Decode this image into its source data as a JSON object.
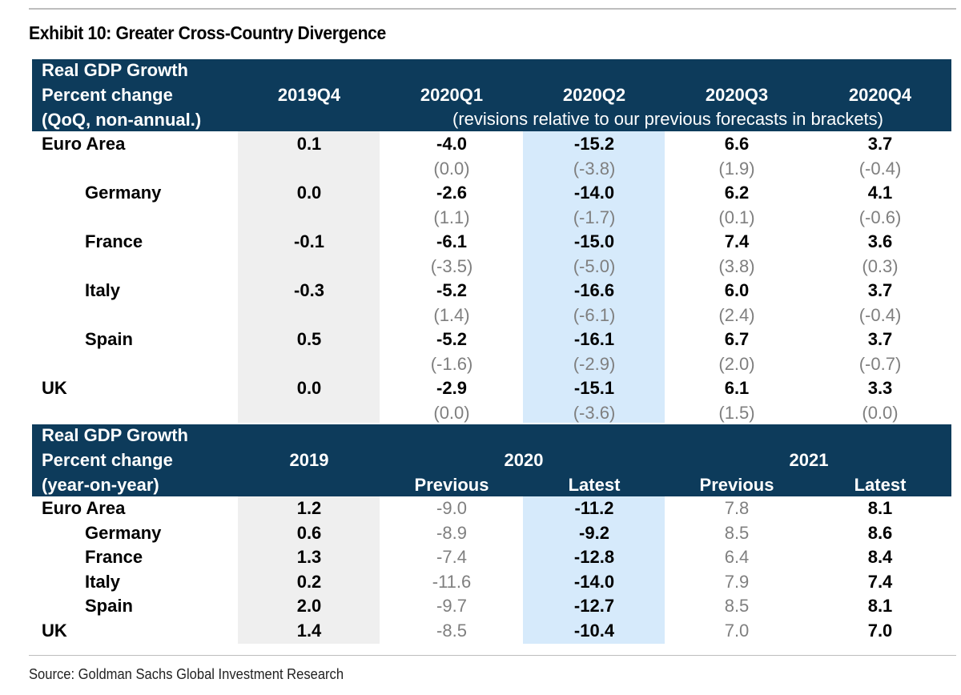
{
  "title": "Exhibit 10: Greater Cross-Country Divergence",
  "source": "Source: Goldman Sachs Global Investment Research",
  "colors": {
    "header_bg": "#0d3b5b",
    "highlight_blue": "#d6eafb",
    "highlight_grey": "#efefef",
    "muted": "#7f7f7f"
  },
  "quarterly": {
    "header": {
      "label_lines": [
        "Real GDP Growth",
        "Percent change",
        "(QoQ, non-annual.)"
      ],
      "columns": [
        "2019Q4",
        "2020Q1",
        "2020Q2",
        "2020Q3",
        "2020Q4"
      ],
      "note": "(revisions relative to our previous forecasts in brackets)"
    },
    "rows": [
      {
        "name": "Euro Area",
        "values": [
          "0.1",
          "-4.0",
          "-15.2",
          "6.6",
          "3.7"
        ],
        "revisions": [
          "(0.0)",
          "(-3.8)",
          "(1.9)",
          "(-0.4)"
        ]
      },
      {
        "name": "Germany",
        "values": [
          "0.0",
          "-2.6",
          "-14.0",
          "6.2",
          "4.1"
        ],
        "revisions": [
          "(1.1)",
          "(-1.7)",
          "(0.1)",
          "(-0.6)"
        ]
      },
      {
        "name": "France",
        "values": [
          "-0.1",
          "-6.1",
          "-15.0",
          "7.4",
          "3.6"
        ],
        "revisions": [
          "(-3.5)",
          "(-5.0)",
          "(3.8)",
          "(0.3)"
        ]
      },
      {
        "name": "Italy",
        "values": [
          "-0.3",
          "-5.2",
          "-16.6",
          "6.0",
          "3.7"
        ],
        "revisions": [
          "(1.4)",
          "(-6.1)",
          "(2.4)",
          "(-0.4)"
        ]
      },
      {
        "name": "Spain",
        "values": [
          "0.5",
          "-5.2",
          "-16.1",
          "6.7",
          "3.7"
        ],
        "revisions": [
          "(-1.6)",
          "(-2.9)",
          "(2.0)",
          "(-0.7)"
        ]
      },
      {
        "name": "UK",
        "values": [
          "0.0",
          "-2.9",
          "-15.1",
          "6.1",
          "3.3"
        ],
        "revisions": [
          "(0.0)",
          "(-3.6)",
          "(1.5)",
          "(0.0)"
        ]
      }
    ]
  },
  "annual": {
    "header": {
      "label_lines": [
        "Real GDP Growth",
        "Percent change",
        "(year-on-year)"
      ],
      "year_2019": "2019",
      "year_2020": "2020",
      "year_2021": "2021",
      "sub_2020": [
        "Previous",
        "Latest"
      ],
      "sub_2021": [
        "Previous",
        "Latest"
      ]
    },
    "rows": [
      {
        "name": "Euro Area",
        "values": [
          "1.2",
          "-9.0",
          "-11.2",
          "7.8",
          "8.1"
        ]
      },
      {
        "name": "Germany",
        "values": [
          "0.6",
          "-8.9",
          "-9.2",
          "8.5",
          "8.6"
        ]
      },
      {
        "name": "France",
        "values": [
          "1.3",
          "-7.4",
          "-12.8",
          "6.4",
          "8.4"
        ]
      },
      {
        "name": "Italy",
        "values": [
          "0.2",
          "-11.6",
          "-14.0",
          "7.9",
          "7.4"
        ]
      },
      {
        "name": "Spain",
        "values": [
          "2.0",
          "-9.7",
          "-12.7",
          "8.5",
          "8.1"
        ]
      },
      {
        "name": "UK",
        "values": [
          "1.4",
          "-8.5",
          "-10.4",
          "7.0",
          "7.0"
        ]
      }
    ]
  }
}
